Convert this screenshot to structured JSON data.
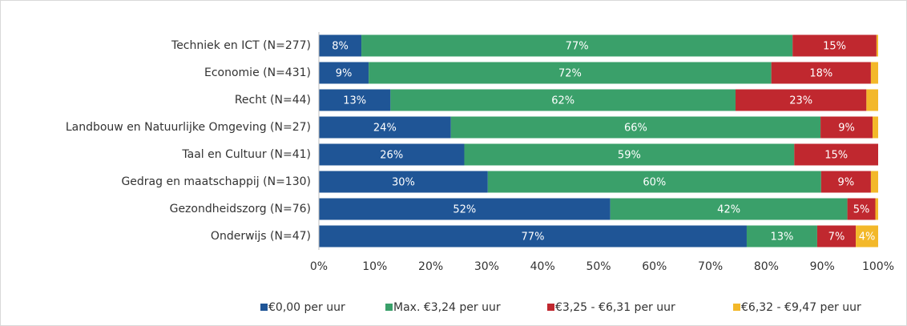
{
  "chart_data": {
    "type": "bar",
    "orientation": "horizontal",
    "stacked": true,
    "categories": [
      "Techniek en ICT (N=277)",
      "Economie (N=431)",
      "Recht (N=44)",
      "Landbouw en Natuurlijke Omgeving (N=27)",
      "Taal en Cultuur (N=41)",
      "Gedrag en maatschappij (N=130)",
      "Gezondheidszorg (N=76)",
      "Onderwijs (N=47)"
    ],
    "series": [
      {
        "name": "€0,00 per uur",
        "color": "#1f5596",
        "values": [
          7.6,
          8.9,
          12.8,
          23.6,
          26,
          30.2,
          52.1,
          76.5
        ],
        "value_labels": [
          "8%",
          "9%",
          "13%",
          "24%",
          "26%",
          "30%",
          "52%",
          "77%"
        ]
      },
      {
        "name": "Max. €3,24 per uur",
        "color": "#3aa06a",
        "values": [
          77.1,
          72.0,
          61.7,
          66.1,
          59,
          59.6,
          42.4,
          12.6
        ],
        "value_labels": [
          "77%",
          "72%",
          "62%",
          "66%",
          "59%",
          "60%",
          "42%",
          "13%"
        ]
      },
      {
        "name": "€3,25 - €6,31 per uur",
        "color": "#c0282f",
        "values": [
          15.0,
          17.8,
          23.4,
          9.3,
          15,
          8.9,
          5.0,
          6.9
        ],
        "value_labels": [
          "15%",
          "18%",
          "23%",
          "9%",
          "15%",
          "9%",
          "5%",
          "7%"
        ]
      },
      {
        "name": "€6,32 - €9,47 per uur",
        "color": "#f3b82a",
        "values": [
          0.3,
          1.3,
          2.1,
          1.0,
          0,
          1.3,
          0.5,
          4.0
        ],
        "value_labels": [
          null,
          null,
          null,
          null,
          null,
          null,
          null,
          "4%"
        ]
      }
    ],
    "xlim": [
      0,
      100
    ],
    "xticks": [
      {
        "value": 0,
        "label": "0%"
      },
      {
        "value": 10,
        "label": "10%"
      },
      {
        "value": 20,
        "label": "20%"
      },
      {
        "value": 30,
        "label": "30%"
      },
      {
        "value": 40,
        "label": "40%"
      },
      {
        "value": 50,
        "label": "50%"
      },
      {
        "value": 60,
        "label": "60%"
      },
      {
        "value": 70,
        "label": "70%"
      },
      {
        "value": 80,
        "label": "80%"
      },
      {
        "value": 90,
        "label": "90%"
      },
      {
        "value": 100,
        "label": "100%"
      }
    ],
    "legend": "bottom"
  }
}
